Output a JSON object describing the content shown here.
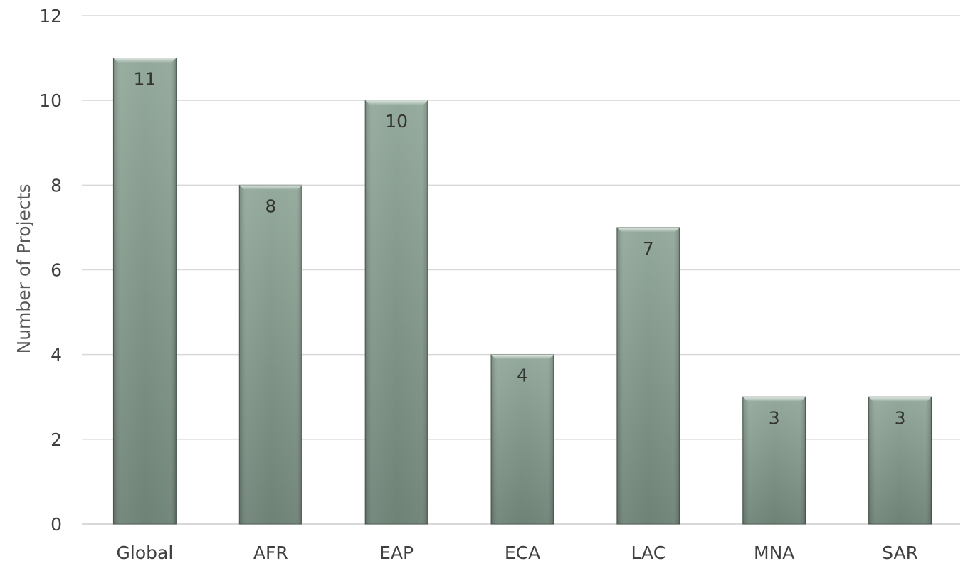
{
  "chart_data": {
    "type": "bar",
    "categories": [
      "Global",
      "AFR",
      "EAP",
      "ECA",
      "LAC",
      "MNA",
      "SAR"
    ],
    "values": [
      11,
      8,
      10,
      4,
      7,
      3,
      3
    ],
    "data_labels": [
      "11",
      "8",
      "10",
      "4",
      "7",
      "3",
      "3"
    ],
    "title": "",
    "xlabel": "",
    "ylabel": "Number of Projects",
    "ylim": [
      0,
      12
    ],
    "yticks": [
      0,
      2,
      4,
      6,
      8,
      10,
      12
    ],
    "ytick_labels": [
      "0",
      "2",
      "4",
      "6",
      "8",
      "10",
      "12"
    ],
    "grid": true,
    "legend": "none",
    "colors": {
      "bar_top": "#93a99b",
      "bar_bottom": "#6e8276",
      "bar_edge": "#4f5e55",
      "grid": "#d9d9d9",
      "text": "#404040"
    }
  }
}
